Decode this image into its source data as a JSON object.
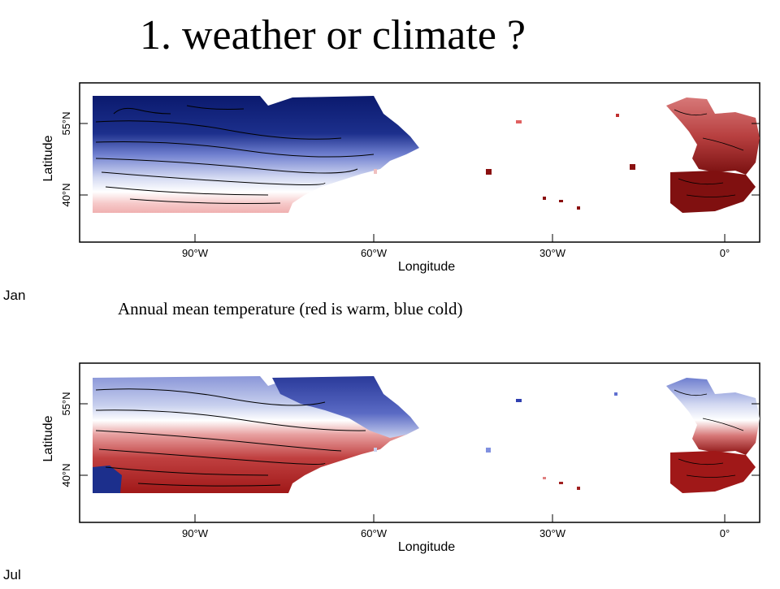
{
  "title": "1. weather or climate ?",
  "caption": "Annual mean temperature (red is warm, blue cold)",
  "axes": {
    "ylabel": "Latitude",
    "xlabel": "Longitude",
    "lat_ticks": [
      "55°N",
      "40°N"
    ],
    "lon_ticks": [
      "90°W",
      "60°W",
      "30°W",
      "0°"
    ]
  },
  "panels": [
    {
      "id": "jan",
      "label": "Jan",
      "pattern": "cold-north-warm-south-and-europe"
    },
    {
      "id": "jul",
      "label": "Jul",
      "pattern": "warm-interior-cold-labrador"
    }
  ],
  "colors": {
    "warm": "#a01818",
    "cold": "#0a1a78",
    "neutral": "#ffffff"
  }
}
